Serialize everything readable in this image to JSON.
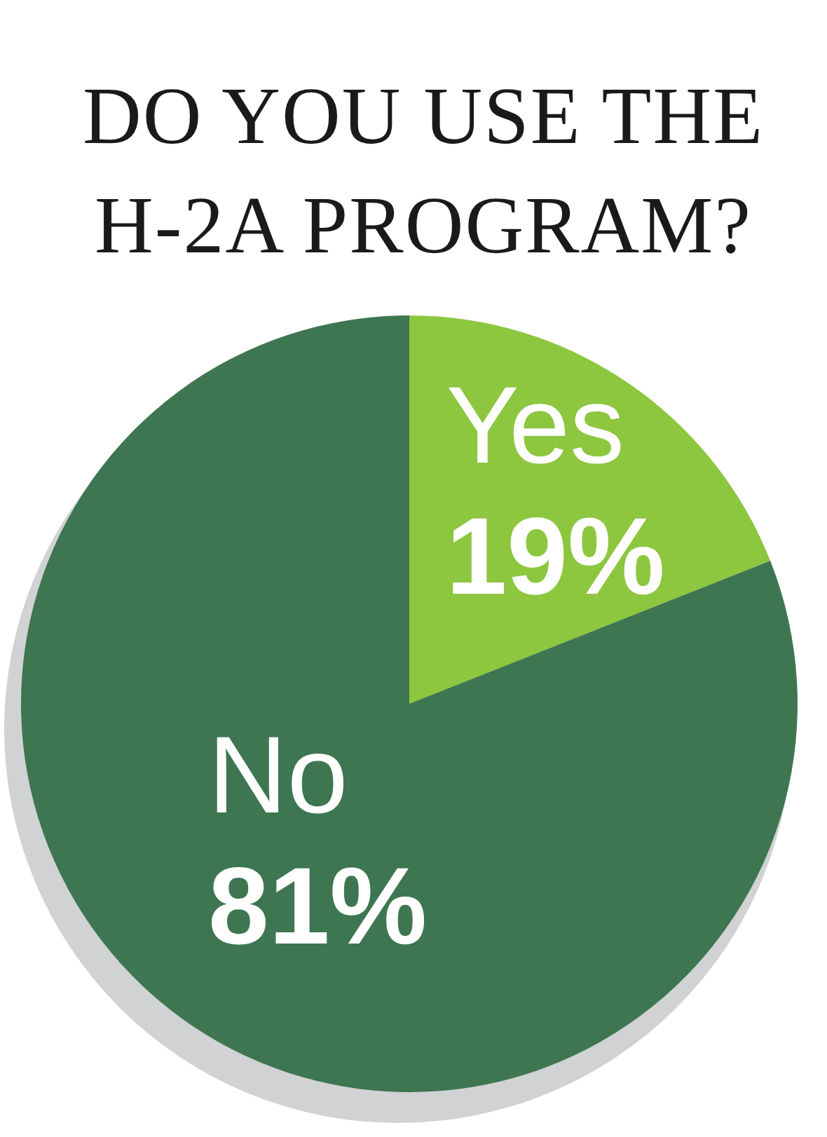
{
  "chart_data": {
    "type": "pie",
    "title": "DO YOU USE THE H-2A PROGRAM?",
    "categories": [
      "Yes",
      "No"
    ],
    "values": [
      19,
      81
    ],
    "colors": [
      "#8dc63f",
      "#3d7650"
    ],
    "value_labels": [
      "19%",
      "81%"
    ]
  }
}
